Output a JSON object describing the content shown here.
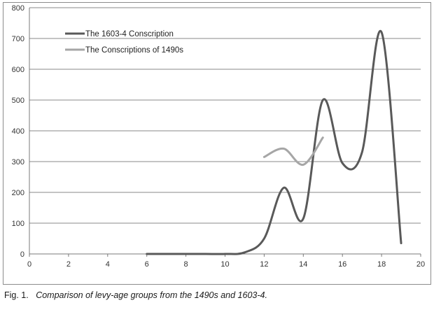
{
  "chart_data": {
    "type": "line",
    "title": "",
    "xlabel": "",
    "ylabel": "",
    "xlim": [
      0,
      20
    ],
    "ylim": [
      0,
      800
    ],
    "x_ticks": [
      0,
      2,
      4,
      6,
      8,
      10,
      12,
      14,
      16,
      18,
      20
    ],
    "y_ticks": [
      0,
      100,
      200,
      300,
      400,
      500,
      600,
      700,
      800
    ],
    "grid": "horizontal",
    "legend_position": "top-left",
    "series": [
      {
        "name": "The 1603-4 Conscription",
        "color": "#595959",
        "x": [
          6,
          7,
          8,
          9,
          10,
          11,
          12,
          13,
          14,
          15,
          16,
          17,
          18,
          19
        ],
        "values": [
          0,
          0,
          0,
          0,
          0,
          5,
          50,
          215,
          115,
          500,
          295,
          330,
          720,
          35
        ]
      },
      {
        "name": "The Conscriptions of 1490s",
        "color": "#a6a6a6",
        "x": [
          12,
          13,
          14,
          15
        ],
        "values": [
          315,
          342,
          290,
          378
        ]
      }
    ]
  },
  "caption": {
    "label": "Fig. 1.",
    "text": "Comparison of levy-age groups from the 1490s and 1603-4."
  }
}
